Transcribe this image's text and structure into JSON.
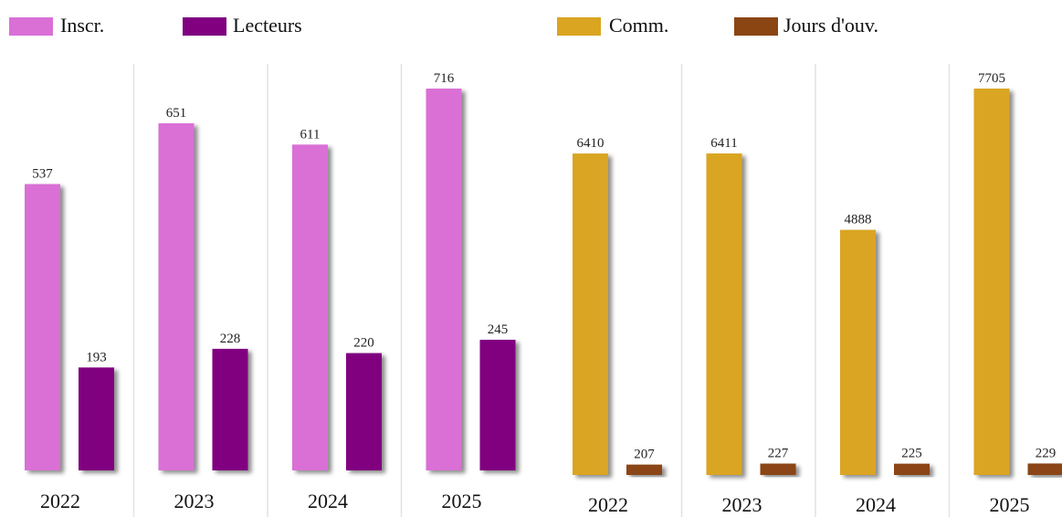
{
  "chart_data": [
    {
      "type": "bar",
      "categories": [
        "2022",
        "2023",
        "2024",
        "2025"
      ],
      "series": [
        {
          "name": "Inscr.",
          "color": "#da70d6",
          "values": [
            537,
            651,
            611,
            716
          ]
        },
        {
          "name": "Lecteurs",
          "color": "#800080",
          "values": [
            193,
            228,
            220,
            245
          ]
        }
      ]
    },
    {
      "type": "bar",
      "categories": [
        "2022",
        "2023",
        "2024",
        "2025"
      ],
      "series": [
        {
          "name": "Comm.",
          "color": "#daa520",
          "values": [
            6410,
            6411,
            4888,
            7705
          ]
        },
        {
          "name": "Jours d'ouv.",
          "color": "#8b4513",
          "values": [
            207,
            227,
            225,
            229
          ]
        }
      ]
    }
  ]
}
